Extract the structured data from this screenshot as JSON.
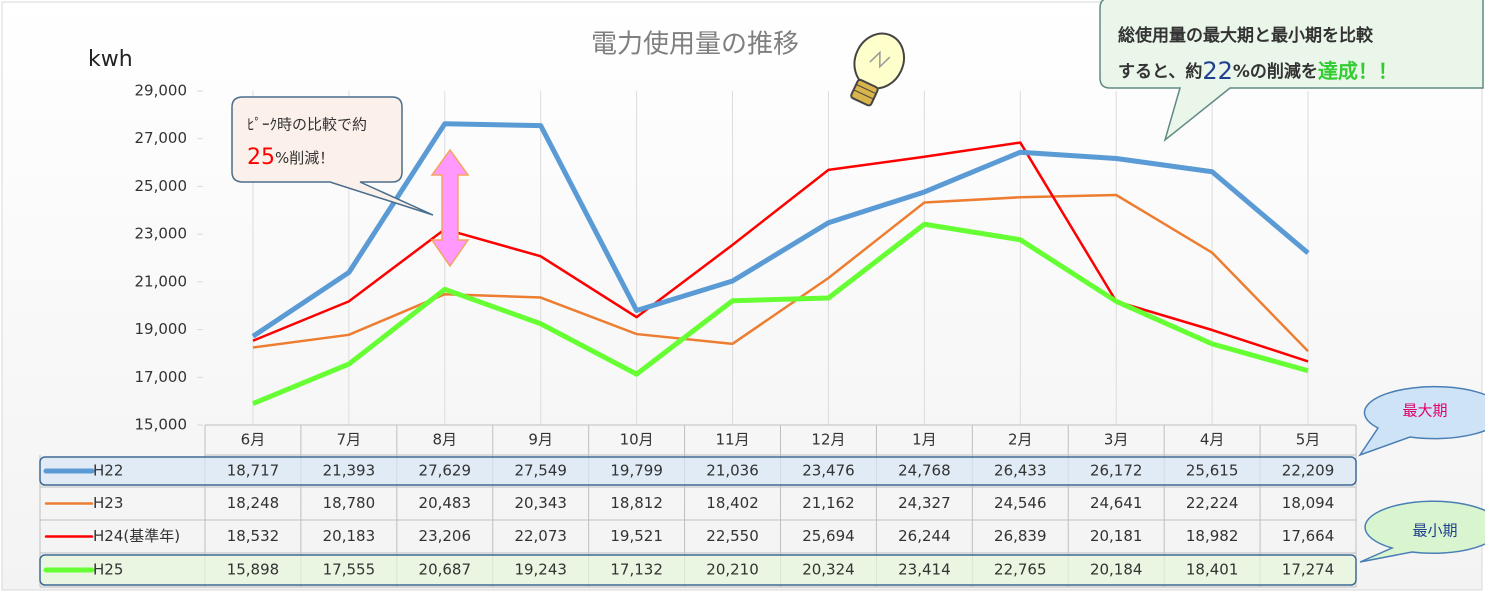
{
  "chart_data": {
    "type": "line",
    "title": "電力使用量の推移",
    "y_label": "kwh",
    "categories": [
      "6月",
      "7月",
      "8月",
      "9月",
      "10月",
      "11月",
      "12月",
      "1月",
      "2月",
      "3月",
      "4月",
      "5月"
    ],
    "series": [
      {
        "name": "H22",
        "color": "#5b9bd5",
        "width": 5,
        "values": [
          18717,
          21393,
          27629,
          27549,
          19799,
          21036,
          23476,
          24768,
          26433,
          26172,
          25615,
          22209
        ],
        "value_labels": [
          "18,717",
          "21,393",
          "27,629",
          "27,549",
          "19,799",
          "21,036",
          "23,476",
          "24,768",
          "26,433",
          "26,172",
          "25,615",
          "22,209"
        ]
      },
      {
        "name": "H23",
        "color": "#ed7d31",
        "width": 2.5,
        "values": [
          18248,
          18780,
          20483,
          20343,
          18812,
          18402,
          21162,
          24327,
          24546,
          24641,
          22224,
          18094
        ],
        "value_labels": [
          "18,248",
          "18,780",
          "20,483",
          "20,343",
          "18,812",
          "18,402",
          "21,162",
          "24,327",
          "24,546",
          "24,641",
          "22,224",
          "18,094"
        ]
      },
      {
        "name": "H24(基準年)",
        "color": "#ff0000",
        "width": 2.5,
        "values": [
          18532,
          20183,
          23206,
          22073,
          19521,
          22550,
          25694,
          26244,
          26839,
          20181,
          18982,
          17664
        ],
        "value_labels": [
          "18,532",
          "20,183",
          "23,206",
          "22,073",
          "19,521",
          "22,550",
          "25,694",
          "26,244",
          "26,839",
          "20,181",
          "18,982",
          "17,664"
        ]
      },
      {
        "name": "H25",
        "color": "#66ff33",
        "width": 5,
        "values": [
          15898,
          17555,
          20687,
          19243,
          17132,
          20210,
          20324,
          23414,
          22765,
          20184,
          18401,
          17274
        ],
        "value_labels": [
          "15,898",
          "17,555",
          "20,687",
          "19,243",
          "17,132",
          "20,210",
          "20,324",
          "23,414",
          "22,765",
          "20,184",
          "18,401",
          "17,274"
        ]
      }
    ],
    "ylim": [
      15000,
      29000
    ],
    "yticks": [
      {
        "value": 15000,
        "label": "15,000"
      },
      {
        "value": 17000,
        "label": "17,000"
      },
      {
        "value": 19000,
        "label": "19,000"
      },
      {
        "value": 21000,
        "label": "21,000"
      },
      {
        "value": 23000,
        "label": "23,000"
      },
      {
        "value": 25000,
        "label": "25,000"
      },
      {
        "value": 27000,
        "label": "27,000"
      },
      {
        "value": 29000,
        "label": "29,000"
      }
    ],
    "grid": true,
    "annotations": {
      "peak_callout": [
        "ﾋﾟｰｸ時の比較で約",
        "25",
        "%削減！"
      ],
      "total_callout": [
        "総使用量の最大期と最小期を比較",
        "すると、約",
        "22",
        "%の削減を",
        "達成！！"
      ],
      "max_label": "最大期",
      "min_label": "最小期"
    }
  }
}
